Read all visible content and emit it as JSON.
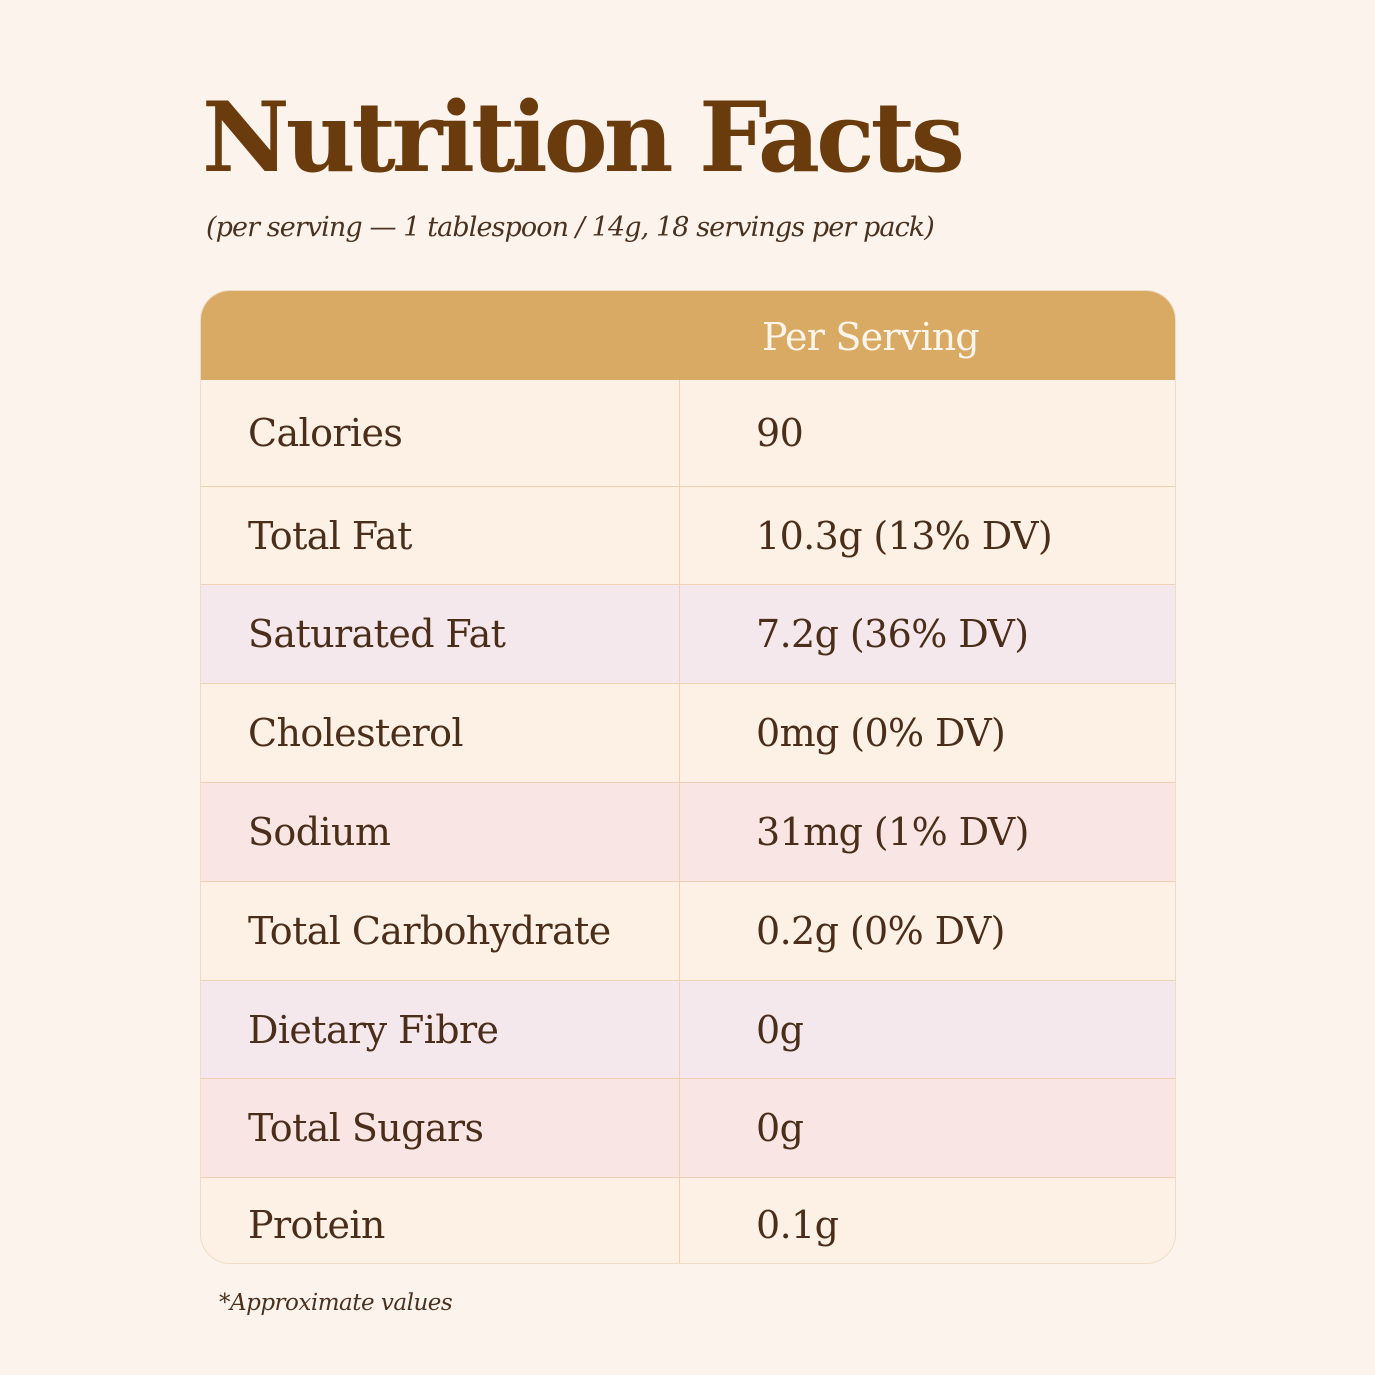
{
  "title": "Nutrition Facts",
  "subtitle": "(per serving — 1 tablespoon / 14g, 18 servings per pack)",
  "table": {
    "column_header": "Per Serving",
    "header_color": "#d9aa63",
    "rows": [
      {
        "name": "Calories",
        "value": "90",
        "color": "#fcf1e4"
      },
      {
        "name": "Total Fat",
        "value": "10.3g (13% DV)",
        "color": "#fcf1e4"
      },
      {
        "name": "Saturated Fat",
        "value": "7.2g (36% DV)",
        "color": "#f4e8ec"
      },
      {
        "name": "Cholesterol",
        "value": "0mg (0% DV)",
        "color": "#fcf1e4"
      },
      {
        "name": "Sodium",
        "value": "31mg (1% DV)",
        "color": "#f9e6e4"
      },
      {
        "name": "Total Carbohydrate",
        "value": "0.2g (0% DV)",
        "color": "#fcf1e4"
      },
      {
        "name": "Dietary Fibre",
        "value": "0g",
        "color": "#f4e8ec"
      },
      {
        "name": "Total Sugars",
        "value": "0g",
        "color": "#f9e6e4"
      },
      {
        "name": "Protein",
        "value": "0.1g",
        "color": "#fcf1e4"
      }
    ]
  },
  "footnote": "*Approximate values",
  "colors": {
    "background": "#fcf4ec",
    "title": "#6a3b0d",
    "text": "#4a2e1a"
  }
}
